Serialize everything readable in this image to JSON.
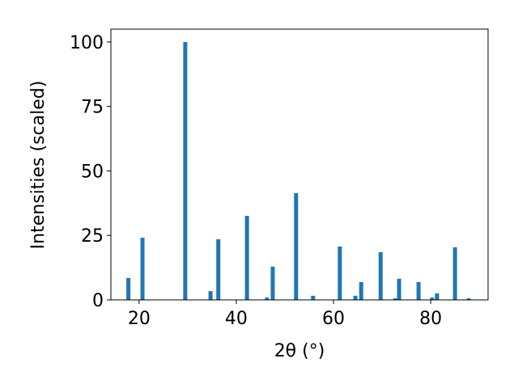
{
  "chart_data": {
    "type": "bar",
    "xlabel": "2θ (°)",
    "ylabel": "Intensities (scaled)",
    "x": [
      17.8,
      20.7,
      29.5,
      34.7,
      36.3,
      42.2,
      46.3,
      47.5,
      52.3,
      55.8,
      61.3,
      64.5,
      65.7,
      69.7,
      72.7,
      73.5,
      77.5,
      80.3,
      81.3,
      85.0,
      87.8
    ],
    "values": [
      8.5,
      24.1,
      100,
      3.4,
      23.5,
      32.6,
      0.9,
      12.9,
      41.4,
      1.6,
      20.7,
      1.6,
      6.9,
      18.5,
      0.6,
      8.2,
      6.9,
      0.9,
      2.5,
      20.4,
      0.6
    ],
    "color": "#1f77b4",
    "xlim": [
      14.2,
      91.8
    ],
    "xticks": [
      20,
      40,
      60,
      80
    ],
    "ylim": [
      0,
      105
    ],
    "yticks": [
      0,
      25,
      50,
      75,
      100
    ]
  }
}
